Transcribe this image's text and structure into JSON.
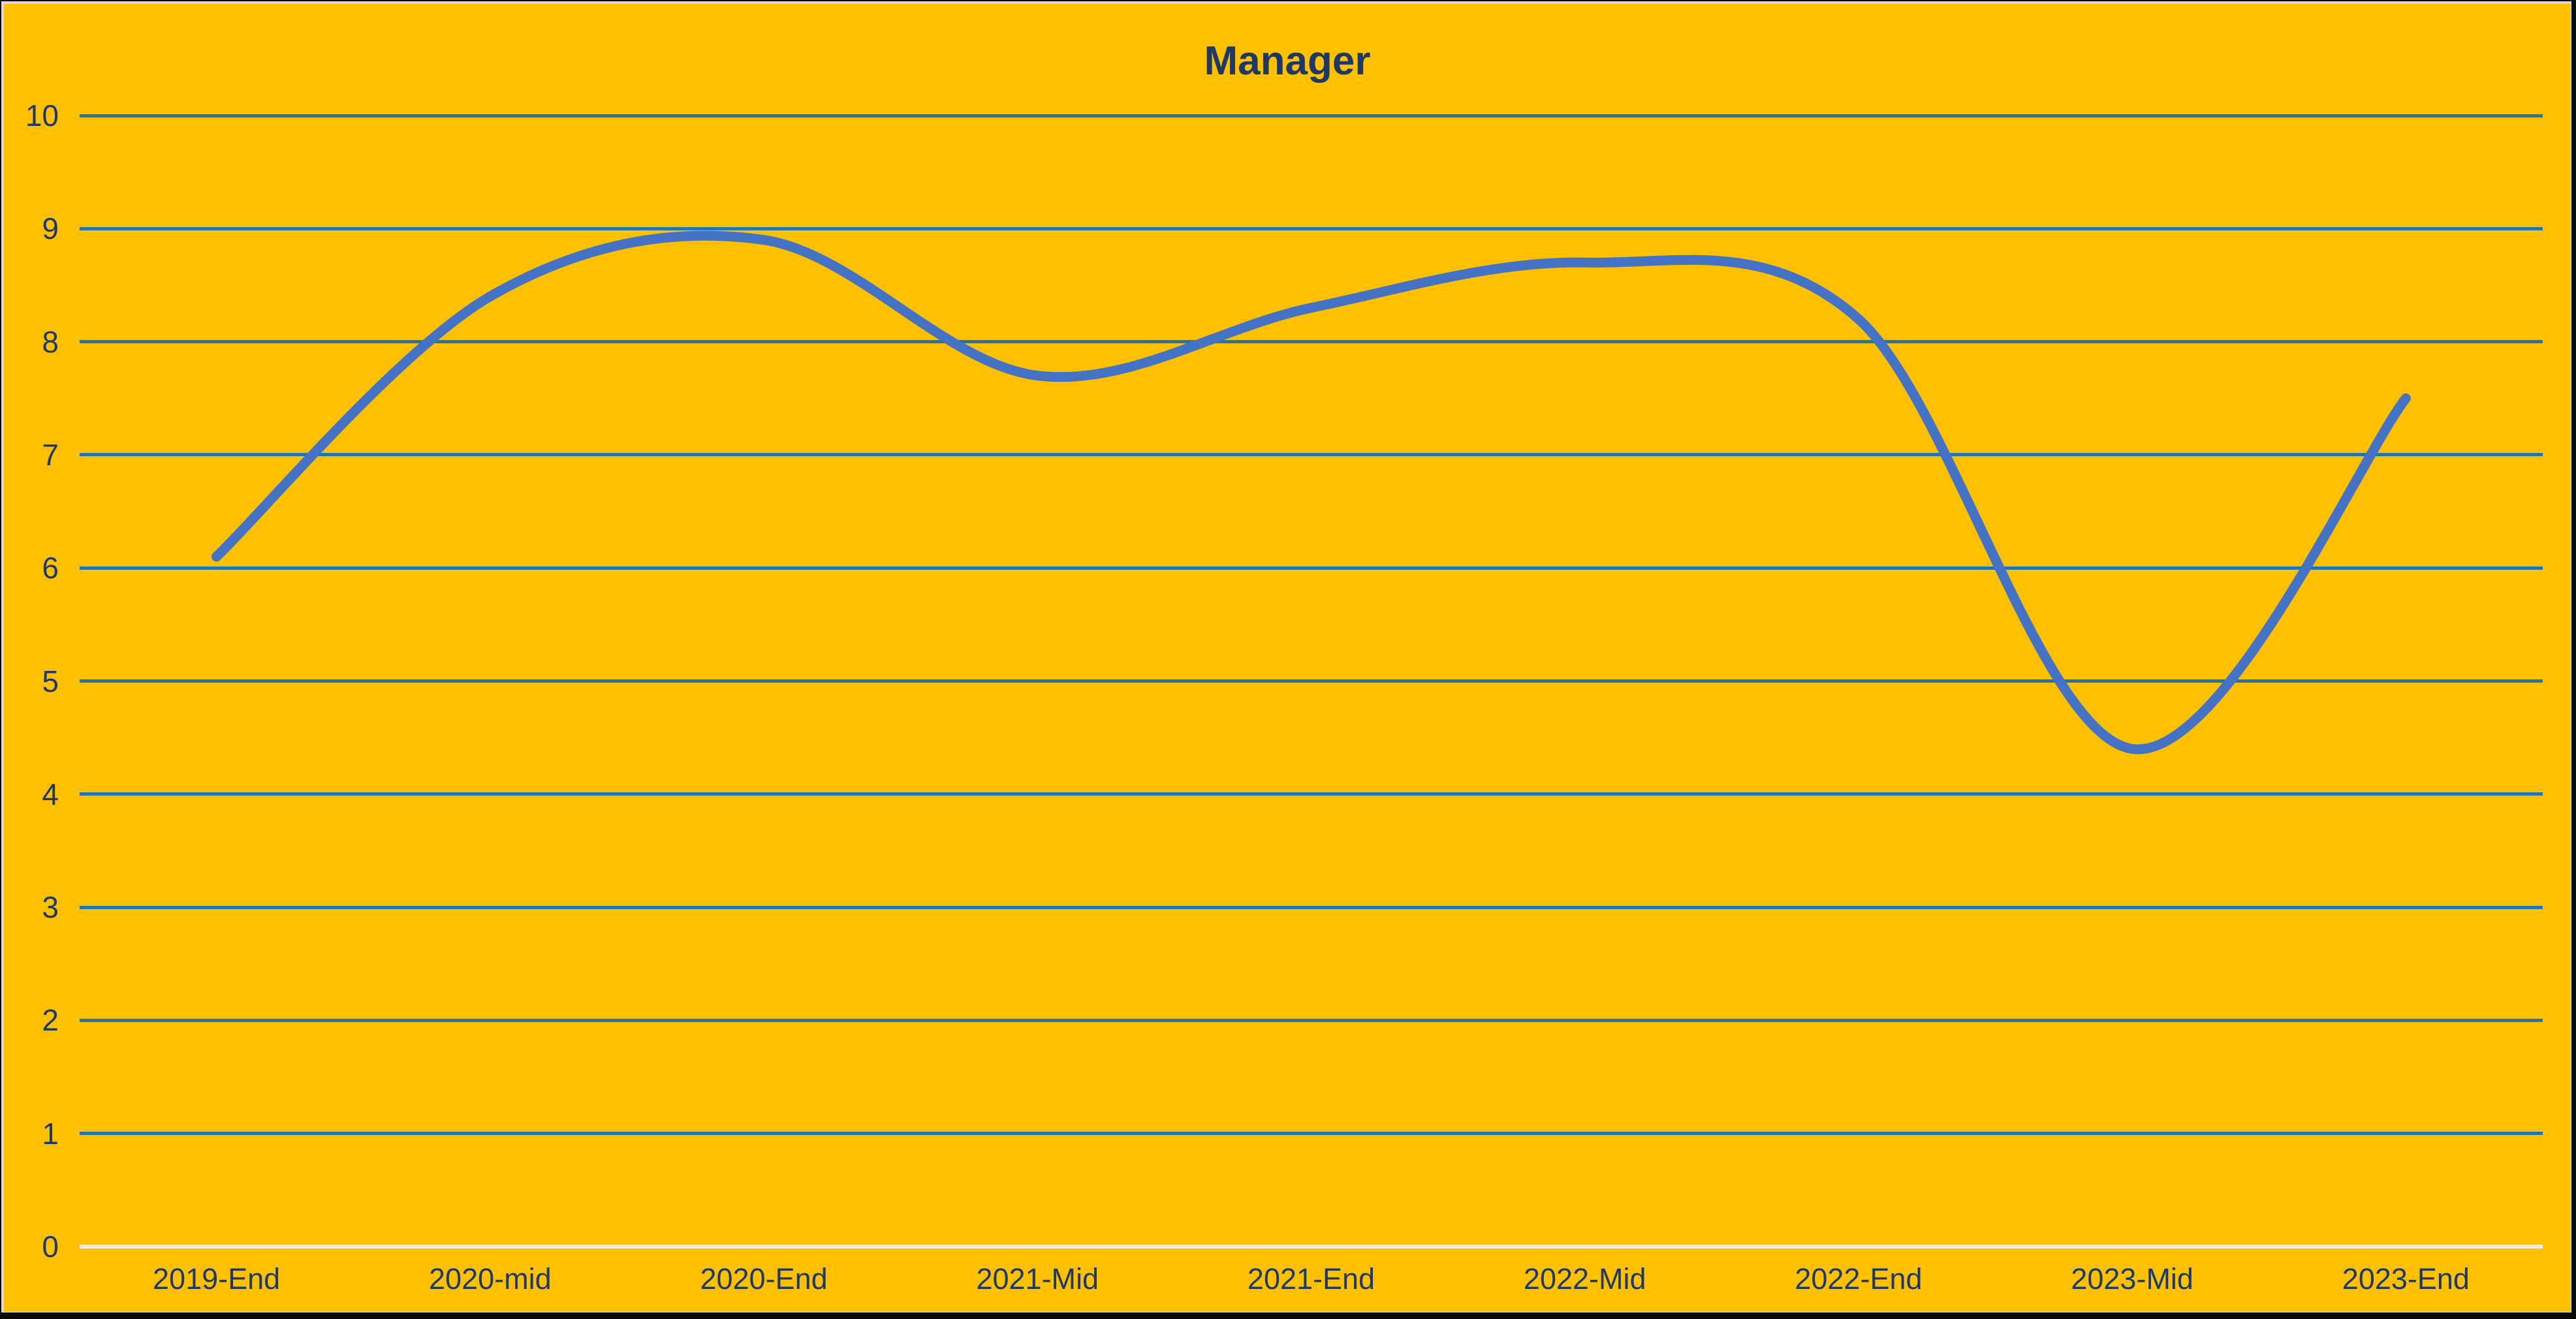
{
  "chart_data": {
    "type": "line",
    "title": "Manager",
    "categories": [
      "2019-End",
      "2020-mid",
      "2020-End",
      "2021-Mid",
      "2021-End",
      "2022-Mid",
      "2022-End",
      "2023-Mid",
      "2023-End"
    ],
    "series": [
      {
        "name": "Manager",
        "values": [
          6.1,
          8.4,
          8.9,
          7.7,
          8.3,
          8.7,
          8.2,
          4.4,
          7.5
        ]
      }
    ],
    "xlabel": "",
    "ylabel": "",
    "ylim": [
      0,
      10
    ],
    "ytick_step": 1,
    "grid": true,
    "legend": "none",
    "smooth": true,
    "markers": false
  },
  "colors": {
    "background": "#FFC000",
    "line": "#4472C4",
    "gridline": "#1F74B3",
    "axis_line": "#EDEDED",
    "text": "#1F3864",
    "frame_inner": "#D9D9D9",
    "frame_outer": "#0A0A0A"
  }
}
